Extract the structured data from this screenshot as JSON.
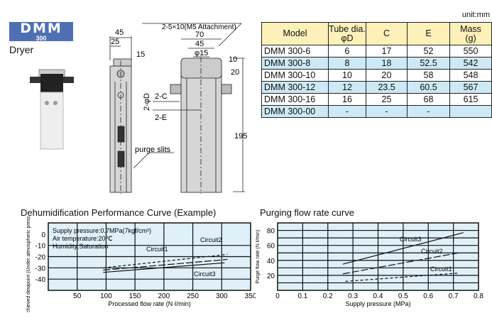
{
  "header": {
    "logo_main": "DMM",
    "logo_sub": "300",
    "product_name": "Dryer",
    "logo_color": "#4f6fb3"
  },
  "drawing": {
    "side_width": "45",
    "side_offset": "25",
    "side_height": "15",
    "front_width": "70",
    "front_inner": "45",
    "front_phi": "φ15",
    "dim_10": "10",
    "dim_20": "20",
    "dim_195": "195",
    "tube_dia": "2-φD",
    "dim_c": "2-C",
    "dim_e": "2-E",
    "attachment": "2-5×10(M5 Attachment)",
    "purge": "purge slits"
  },
  "table": {
    "unit": "unit:mm",
    "headers": [
      "Model",
      "Tube dia.\nφD",
      "C",
      "E",
      "Mass\n(g)"
    ],
    "rows": [
      [
        "DMM 300-6",
        "6",
        "17",
        "52",
        "550"
      ],
      [
        "DMM 300-8",
        "8",
        "18",
        "52.5",
        "542"
      ],
      [
        "DMM 300-10",
        "10",
        "20",
        "58",
        "548"
      ],
      [
        "DMM 300-12",
        "12",
        "23.5",
        "60.5",
        "567"
      ],
      [
        "DMM 300-16",
        "16",
        "25",
        "68",
        "615"
      ],
      [
        "DMM 300-00",
        "-",
        "-",
        "-",
        ""
      ]
    ],
    "header_color": "#fdf1b9",
    "stripe_color": "#cde9f5"
  },
  "chart_data": [
    {
      "type": "line",
      "title": "Dehumidification Performance Curve (Example)",
      "xlabel": "Processed flow rate (N ℓ/min)",
      "ylabel": "Achieved dewpoint (Under atmospheric pressure) (℃)",
      "xlim": [
        0,
        350
      ],
      "ylim": [
        -50,
        10
      ],
      "xticks": [
        50,
        100,
        150,
        200,
        250,
        300,
        350
      ],
      "yticks": [
        0,
        -10,
        -20,
        -30,
        -40
      ],
      "grid": true,
      "background": "#dff0f8",
      "annotations": [
        "Supply pressure:0.7MPa(7kgf/cm²)",
        "Air temperature:20℃",
        "Humidity:Saturation"
      ],
      "series": [
        {
          "name": "Circuit1",
          "style": "long-dash",
          "x": [
            95,
            310
          ],
          "y": [
            -32,
            -22.5
          ]
        },
        {
          "name": "Circuit2",
          "style": "short-dash",
          "x": [
            95,
            310
          ],
          "y": [
            -30,
            -18
          ]
        },
        {
          "name": "Circuit3",
          "style": "solid",
          "x": [
            95,
            305
          ],
          "y": [
            -34,
            -25.5
          ]
        }
      ]
    },
    {
      "type": "line",
      "title": "Purging flow rate curve",
      "xlabel": "Supply pressure (MPa)",
      "ylabel": "Purge flow rate (N ℓ/min)",
      "xlim": [
        0,
        0.8
      ],
      "ylim": [
        0,
        90
      ],
      "xticks": [
        0,
        0.1,
        0.2,
        0.3,
        0.4,
        0.5,
        0.6,
        0.7,
        0.8
      ],
      "yticks": [
        20,
        40,
        60,
        80
      ],
      "grid": true,
      "background": "#dff0f8",
      "series": [
        {
          "name": "Circuit3",
          "style": "solid",
          "x": [
            0.26,
            0.74
          ],
          "y": [
            35,
            77
          ]
        },
        {
          "name": "Circuit2",
          "style": "long-dash",
          "x": [
            0.26,
            0.72
          ],
          "y": [
            22,
            50
          ]
        },
        {
          "name": "Circuit1",
          "style": "short-dash",
          "x": [
            0.27,
            0.72
          ],
          "y": [
            12,
            23
          ]
        }
      ]
    }
  ]
}
